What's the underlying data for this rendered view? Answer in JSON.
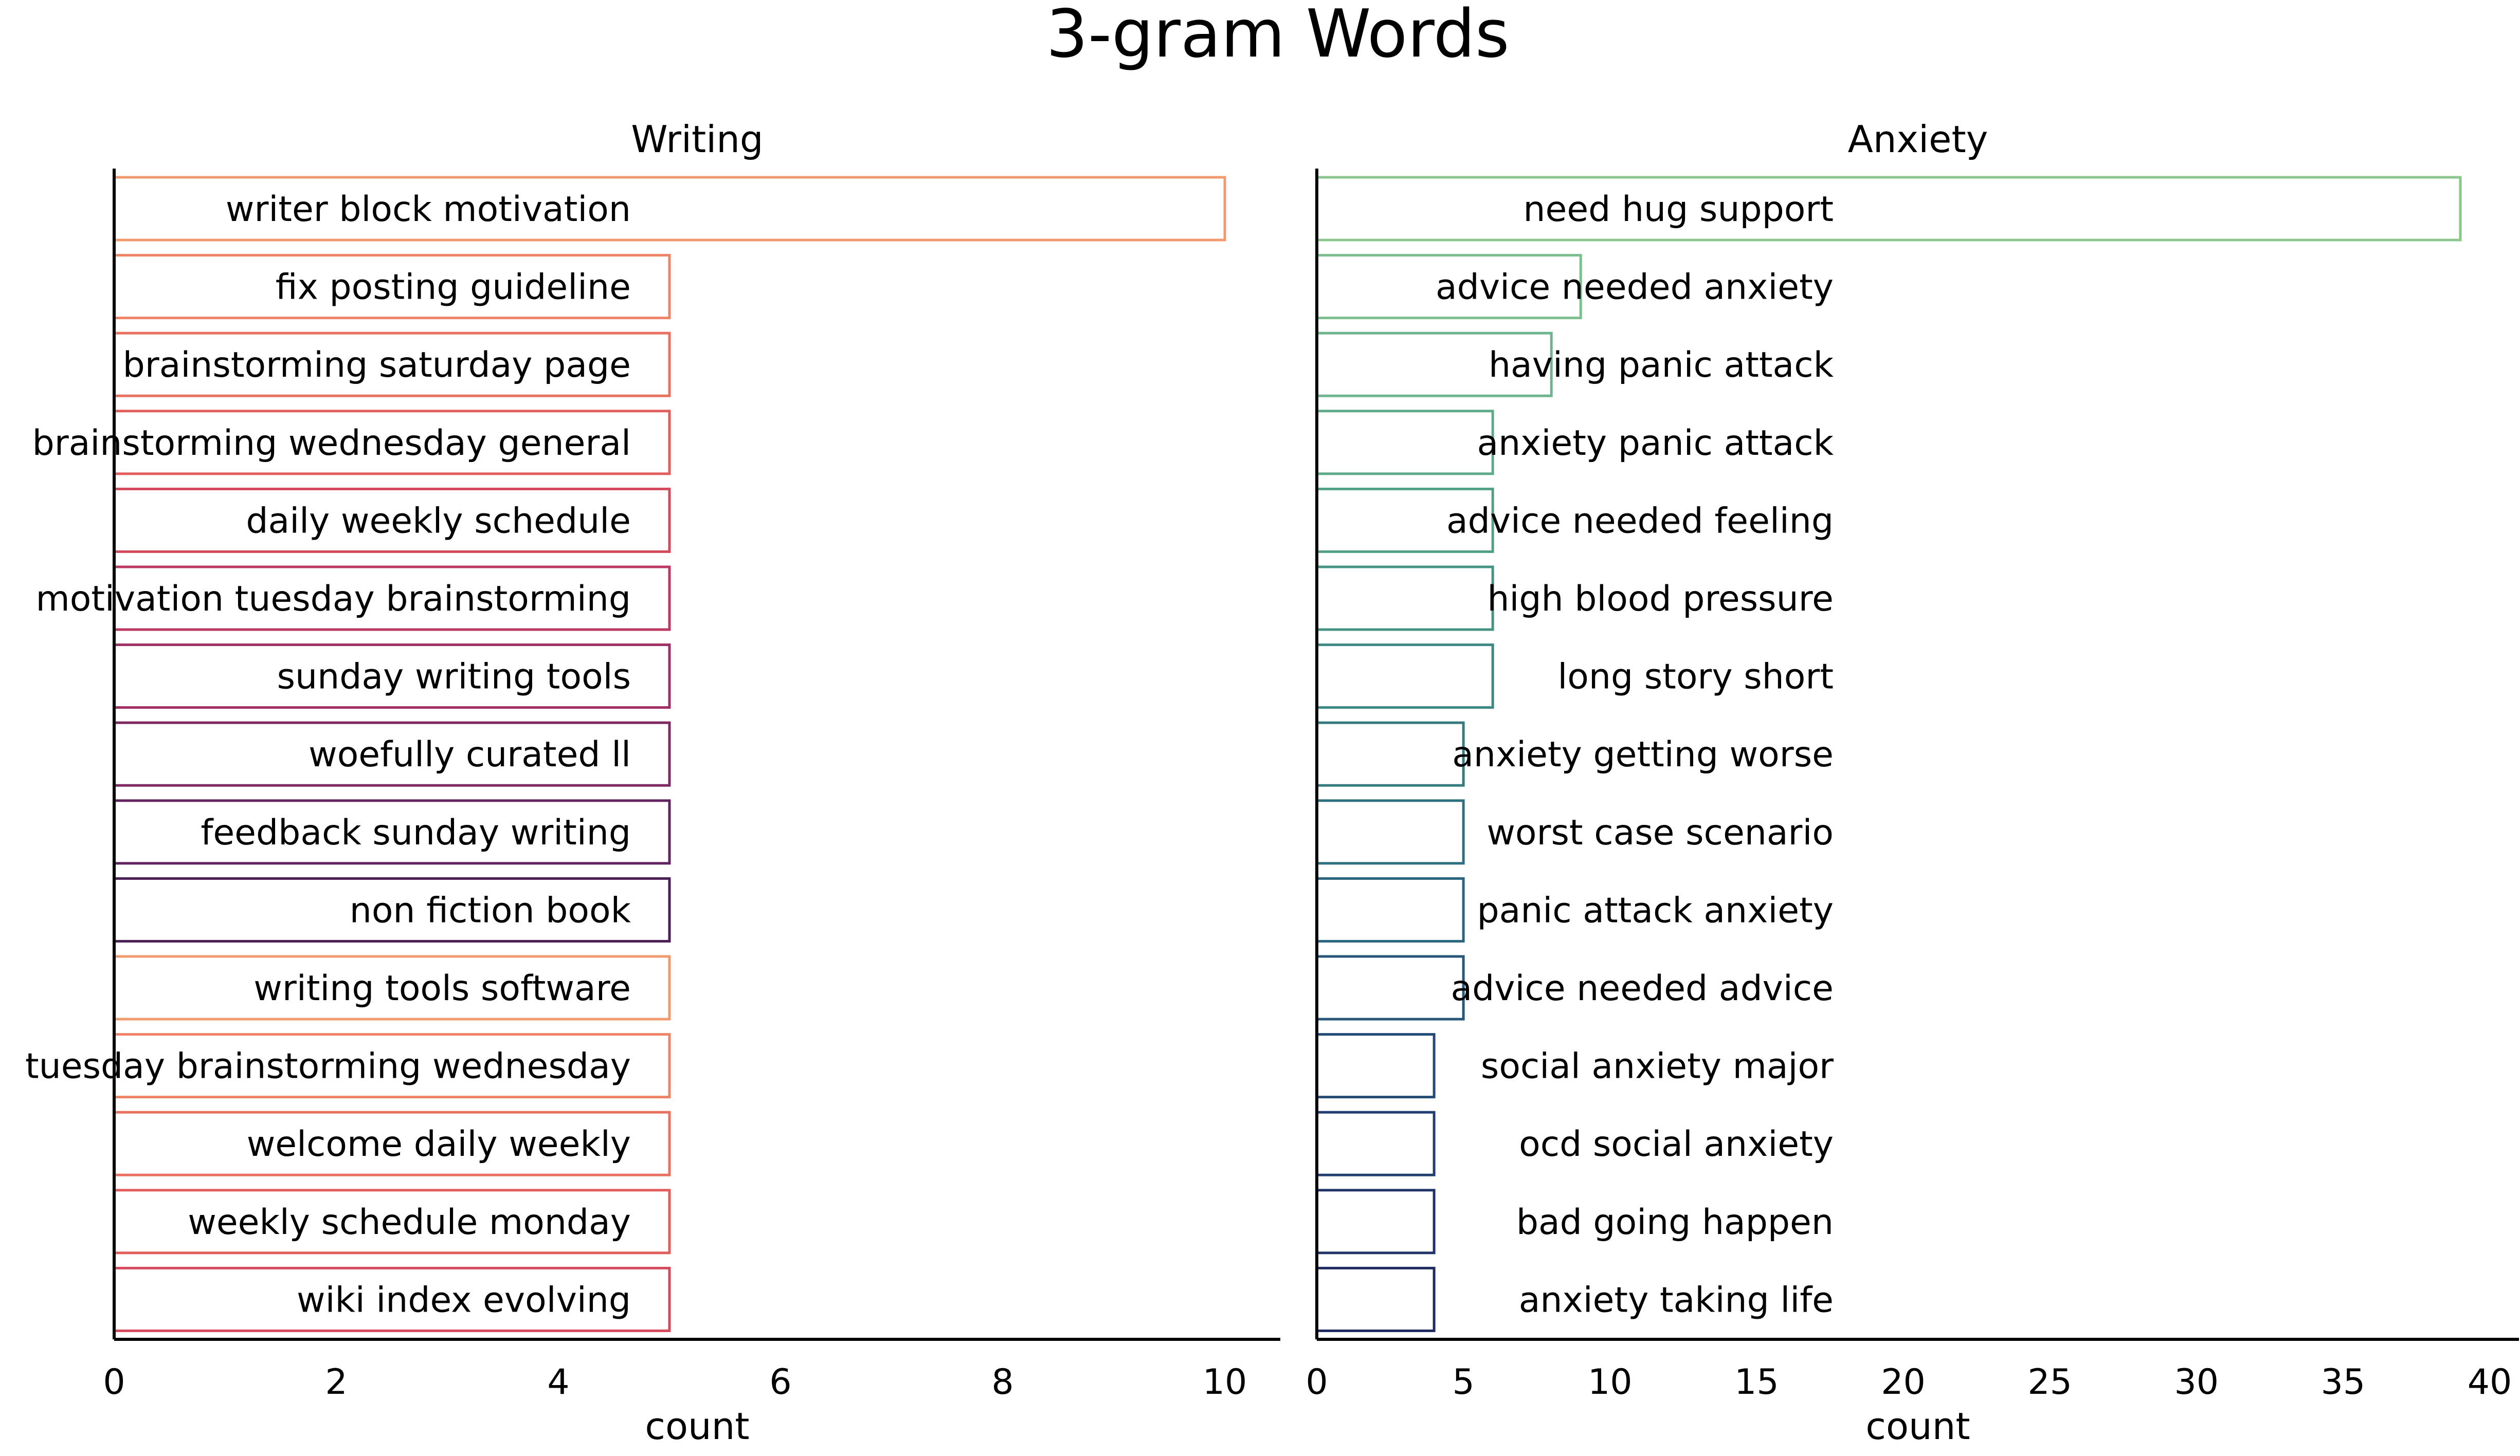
{
  "title": "3-gram Words",
  "chart_data": [
    {
      "type": "bar",
      "orientation": "horizontal",
      "title": "Writing",
      "xlabel": "count",
      "ylabel": "",
      "xlim": [
        0,
        10.5
      ],
      "xticks": [
        0,
        2,
        4,
        6,
        8,
        10
      ],
      "grid": false,
      "bar_style": "outline",
      "colors": [
        "#F19A6E",
        "#EE8466",
        "#E9705E",
        "#E35D5A",
        "#D44A5C",
        "#BC3A61",
        "#9E2F65",
        "#7F2963",
        "#62245E",
        "#4A1F55",
        "#F19A6E",
        "#EE8466",
        "#E9705E",
        "#E35D5A",
        "#D44A5C"
      ],
      "categories": [
        "writer block motivation",
        "fix posting guideline",
        "brainstorming saturday page",
        "brainstorming wednesday general",
        "daily weekly schedule",
        "motivation tuesday brainstorming",
        "sunday writing tools",
        "woefully curated ll",
        "feedback sunday writing",
        "non fiction book",
        "writing tools software",
        "tuesday brainstorming wednesday",
        "welcome daily weekly",
        "weekly schedule monday",
        "wiki index evolving"
      ],
      "values": [
        10,
        5,
        5,
        5,
        5,
        5,
        5,
        5,
        5,
        5,
        5,
        5,
        5,
        5,
        5
      ]
    },
    {
      "type": "bar",
      "orientation": "horizontal",
      "title": "Anxiety",
      "xlabel": "count",
      "ylabel": "",
      "xlim": [
        0,
        41
      ],
      "xticks": [
        0,
        5,
        10,
        15,
        20,
        25,
        30,
        35,
        40
      ],
      "grid": false,
      "bar_style": "outline",
      "colors": [
        "#8CC68F",
        "#7DBE8E",
        "#6DB58C",
        "#5EAB89",
        "#519F87",
        "#459385",
        "#3C8883",
        "#357C81",
        "#2F707F",
        "#2B647D",
        "#27577A",
        "#244A76",
        "#223E70",
        "#203468",
        "#1F2B5E"
      ],
      "categories": [
        "need hug support",
        "advice needed anxiety",
        "having panic attack",
        "anxiety panic attack",
        "advice needed feeling",
        "high blood pressure",
        "long story short",
        "anxiety getting worse",
        "worst case scenario",
        "panic attack anxiety",
        "advice needed advice",
        "social anxiety major",
        "ocd social anxiety",
        "bad going happen",
        "anxiety taking life"
      ],
      "values": [
        39,
        9,
        8,
        6,
        6,
        6,
        6,
        5,
        5,
        5,
        5,
        4,
        4,
        4,
        4
      ]
    }
  ]
}
